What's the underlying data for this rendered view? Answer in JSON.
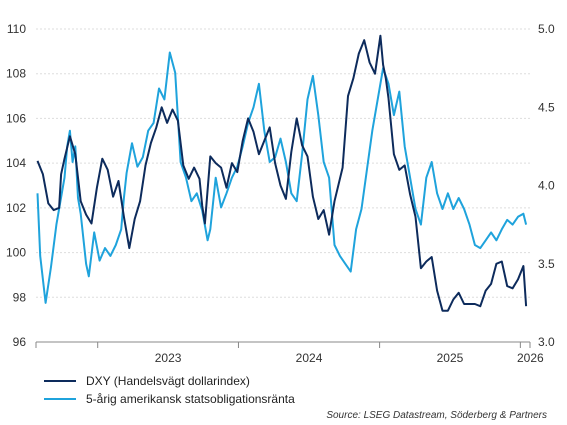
{
  "chart_data": {
    "type": "line",
    "title": "",
    "xlabel": "",
    "ylabel": "",
    "x_ticks": [
      "2023",
      "2024",
      "2025",
      "2026"
    ],
    "y_left": {
      "lim": [
        96,
        110
      ],
      "ticks": [
        "96",
        "98",
        "100",
        "102",
        "104",
        "106",
        "108",
        "110"
      ]
    },
    "y_right": {
      "lim": [
        3.0,
        5.0
      ],
      "ticks": [
        "3.0",
        "3.5",
        "4.0",
        "4.5",
        "5.0"
      ]
    },
    "grid": "horizontal",
    "legend_position": "bottom-left",
    "series": [
      {
        "name": "DXY (Handelsvägt dollarindex)",
        "axis": "left",
        "color": "#0d2b5c",
        "x": [
          "2022-07-29",
          "2022-08-12",
          "2022-08-26",
          "2022-09-09",
          "2022-09-23",
          "2022-09-28",
          "2022-10-07",
          "2022-10-21",
          "2022-11-04",
          "2022-11-18",
          "2022-12-02",
          "2022-12-16",
          "2022-12-30",
          "2023-01-13",
          "2023-01-27",
          "2023-02-10",
          "2023-02-24",
          "2023-03-10",
          "2023-03-24",
          "2023-04-07",
          "2023-04-21",
          "2023-05-05",
          "2023-05-19",
          "2023-06-02",
          "2023-06-16",
          "2023-06-30",
          "2023-07-14",
          "2023-07-28",
          "2023-08-11",
          "2023-08-25",
          "2023-09-08",
          "2023-09-22",
          "2023-09-29",
          "2023-10-06",
          "2023-10-20",
          "2023-11-03",
          "2023-11-17",
          "2023-12-01",
          "2023-12-15",
          "2023-12-29",
          "2024-01-12",
          "2024-01-26",
          "2024-02-09",
          "2024-02-23",
          "2024-03-08",
          "2024-03-22",
          "2024-04-05",
          "2024-04-19",
          "2024-05-03",
          "2024-05-17",
          "2024-05-31",
          "2024-06-14",
          "2024-06-28",
          "2024-07-12",
          "2024-07-26",
          "2024-08-09",
          "2024-08-23",
          "2024-09-06",
          "2024-09-27",
          "2024-10-11",
          "2024-10-25",
          "2024-11-08",
          "2024-11-22",
          "2024-12-06",
          "2024-12-20",
          "2025-01-03",
          "2025-01-10",
          "2025-01-17",
          "2025-01-24",
          "2025-02-07",
          "2025-02-21",
          "2025-03-07",
          "2025-03-21",
          "2025-04-04",
          "2025-04-18",
          "2025-05-02",
          "2025-05-16",
          "2025-05-30",
          "2025-06-13",
          "2025-06-27",
          "2025-07-11",
          "2025-07-25",
          "2025-08-08",
          "2025-08-22",
          "2025-09-05",
          "2025-09-19",
          "2025-10-03",
          "2025-10-17",
          "2025-10-31",
          "2025-11-14",
          "2025-11-28",
          "2025-12-12",
          "2025-12-26",
          "2026-01-09",
          "2026-01-16"
        ],
        "values": [
          104.1,
          103.5,
          102.2,
          101.9,
          102.0,
          103.5,
          104.2,
          105.2,
          104.4,
          102.3,
          101.7,
          101.3,
          102.9,
          104.2,
          103.7,
          102.5,
          103.2,
          101.6,
          100.2,
          101.5,
          102.3,
          103.9,
          104.9,
          105.6,
          106.5,
          105.8,
          106.4,
          105.9,
          103.9,
          103.3,
          103.8,
          103.3,
          102.1,
          101.3,
          104.3,
          104.0,
          103.8,
          102.9,
          104.0,
          103.6,
          105.0,
          106.0,
          105.4,
          104.4,
          105.0,
          105.6,
          104.0,
          103.0,
          102.4,
          104.5,
          106.0,
          104.8,
          104.3,
          102.5,
          101.5,
          101.9,
          100.8,
          102.3,
          103.8,
          107.0,
          107.8,
          108.9,
          109.5,
          108.5,
          108.0,
          109.7,
          108.4,
          107.8,
          106.9,
          104.4,
          103.7,
          103.9,
          102.6,
          101.6,
          99.3,
          99.6,
          99.8,
          98.3,
          97.4,
          97.4,
          97.9,
          98.2,
          97.7,
          97.7,
          97.7,
          97.6,
          98.3,
          98.6,
          99.5,
          99.6,
          98.5,
          98.4,
          98.8,
          99.4,
          97.6
        ]
      },
      {
        "name": "5-årig amerikansk statsobligationsränta",
        "axis": "right",
        "color": "#1fa3dc",
        "x": [
          "2022-07-29",
          "2022-08-05",
          "2022-08-19",
          "2022-09-02",
          "2022-09-16",
          "2022-09-30",
          "2022-10-07",
          "2022-10-14",
          "2022-10-21",
          "2022-10-28",
          "2022-11-04",
          "2022-11-11",
          "2022-11-18",
          "2022-12-02",
          "2022-12-09",
          "2022-12-23",
          "2023-01-06",
          "2023-01-20",
          "2023-02-03",
          "2023-02-17",
          "2023-03-03",
          "2023-03-10",
          "2023-03-17",
          "2023-03-31",
          "2023-04-14",
          "2023-04-28",
          "2023-05-12",
          "2023-05-26",
          "2023-06-09",
          "2023-06-23",
          "2023-07-07",
          "2023-07-21",
          "2023-08-04",
          "2023-08-18",
          "2023-09-01",
          "2023-09-15",
          "2023-09-29",
          "2023-10-13",
          "2023-10-20",
          "2023-11-03",
          "2023-11-17",
          "2023-12-01",
          "2023-12-15",
          "2023-12-29",
          "2024-01-12",
          "2024-01-26",
          "2024-02-09",
          "2024-02-23",
          "2024-03-08",
          "2024-03-22",
          "2024-04-05",
          "2024-04-19",
          "2024-05-03",
          "2024-05-17",
          "2024-05-31",
          "2024-06-14",
          "2024-06-28",
          "2024-07-12",
          "2024-07-26",
          "2024-08-09",
          "2024-08-23",
          "2024-09-06",
          "2024-09-20",
          "2024-10-04",
          "2024-10-18",
          "2024-11-01",
          "2024-11-15",
          "2024-11-29",
          "2024-12-13",
          "2024-12-27",
          "2025-01-10",
          "2025-01-24",
          "2025-02-07",
          "2025-02-21",
          "2025-03-07",
          "2025-03-21",
          "2025-04-04",
          "2025-04-18",
          "2025-05-02",
          "2025-05-16",
          "2025-05-30",
          "2025-06-13",
          "2025-06-27",
          "2025-07-11",
          "2025-07-25",
          "2025-08-08",
          "2025-08-22",
          "2025-09-05",
          "2025-09-19",
          "2025-10-03",
          "2025-10-17",
          "2025-10-31",
          "2025-11-14",
          "2025-11-28",
          "2025-12-12",
          "2025-12-26",
          "2026-01-09",
          "2026-01-16"
        ],
        "values": [
          3.95,
          3.55,
          3.25,
          3.48,
          3.75,
          3.95,
          4.05,
          4.25,
          4.35,
          4.15,
          4.25,
          3.92,
          3.82,
          3.5,
          3.42,
          3.7,
          3.52,
          3.6,
          3.55,
          3.62,
          3.72,
          3.92,
          4.08,
          4.27,
          4.12,
          4.18,
          4.35,
          4.4,
          4.62,
          4.55,
          4.85,
          4.72,
          4.15,
          4.05,
          3.9,
          3.95,
          3.84,
          3.65,
          3.72,
          4.05,
          3.86,
          3.95,
          4.05,
          4.12,
          4.25,
          4.4,
          4.5,
          4.65,
          4.35,
          4.15,
          4.18,
          4.3,
          4.15,
          3.95,
          3.9,
          4.2,
          4.55,
          4.7,
          4.45,
          4.15,
          4.05,
          3.62,
          3.55,
          3.5,
          3.45,
          3.72,
          3.85,
          4.1,
          4.35,
          4.55,
          4.75,
          4.65,
          4.45,
          4.6,
          4.25,
          4.05,
          3.85,
          3.75,
          4.05,
          4.15,
          3.95,
          3.85,
          3.95,
          3.85,
          3.92,
          3.85,
          3.75,
          3.62,
          3.6,
          3.65,
          3.7,
          3.65,
          3.72,
          3.78,
          3.75,
          3.8,
          3.82,
          3.75
        ]
      }
    ]
  },
  "legend": [
    {
      "label": "DXY (Handelsvägt dollarindex)",
      "color": "#0d2b5c"
    },
    {
      "label": "5-årig amerikansk statsobligationsränta",
      "color": "#1fa3dc"
    }
  ],
  "source": "Source: LSEG Datastream, Söderberg & Partners"
}
